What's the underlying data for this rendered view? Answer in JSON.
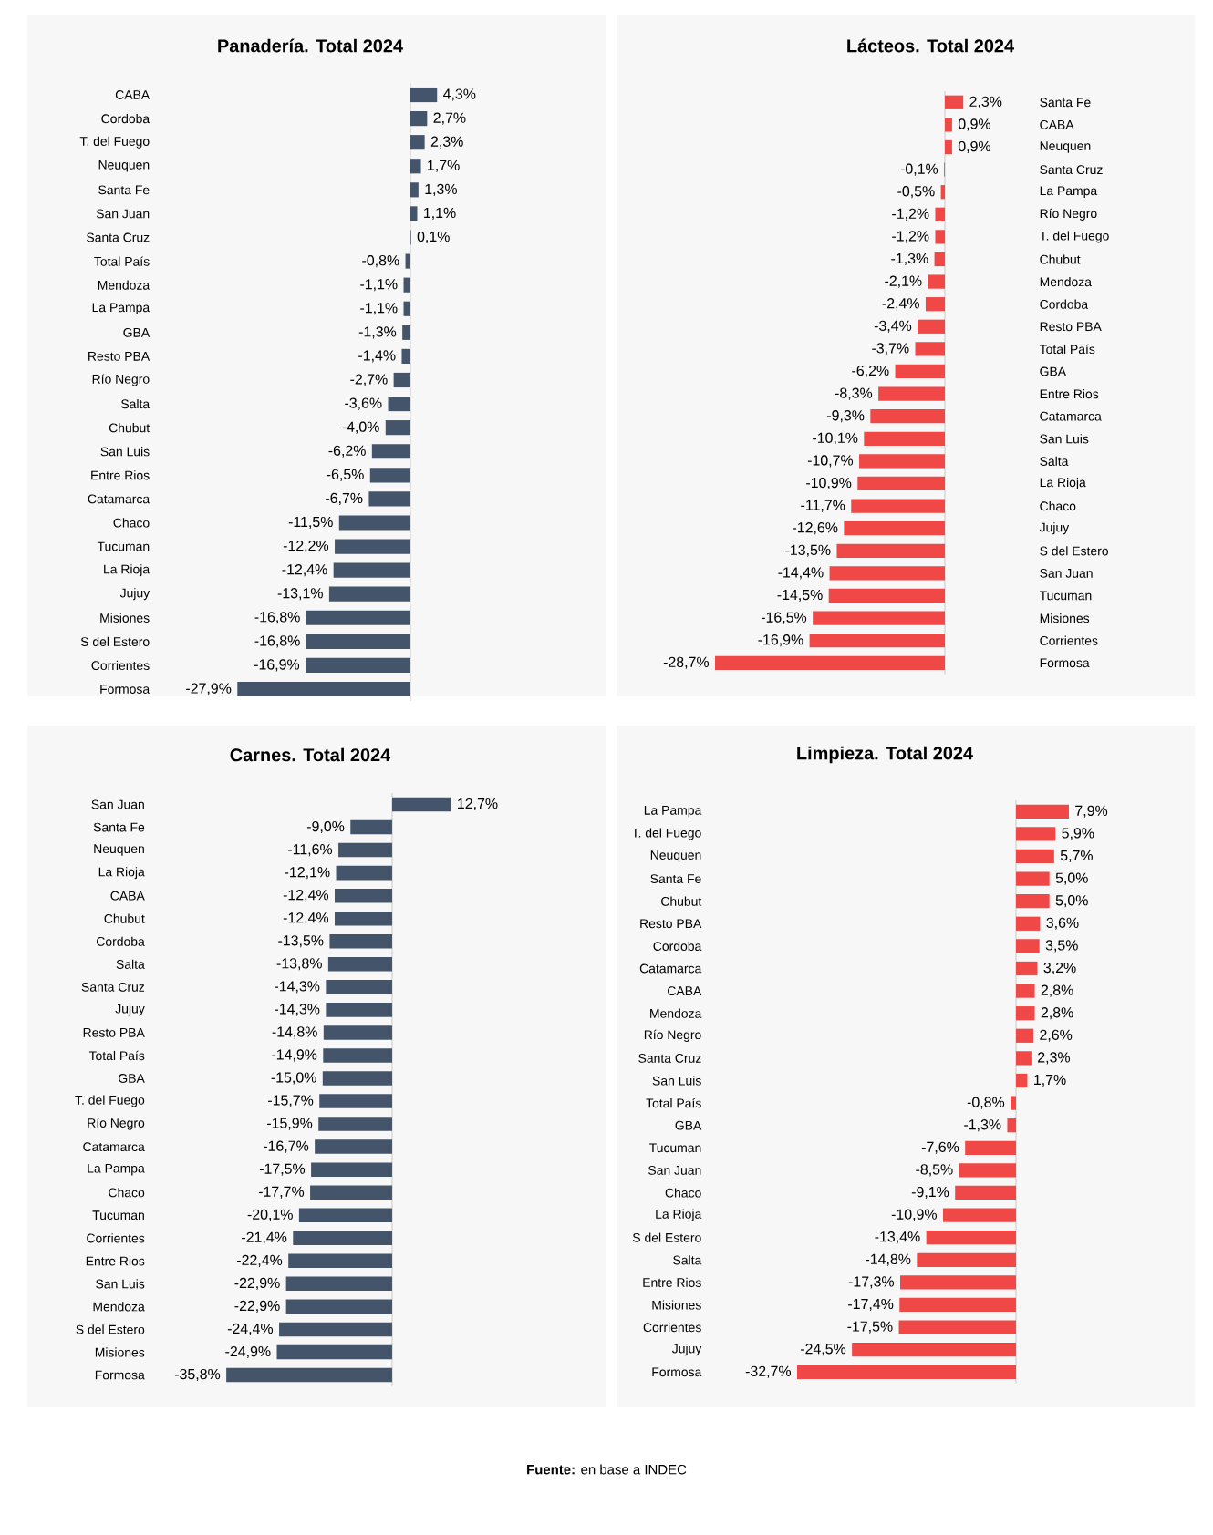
{
  "chart_data": [
    {
      "type": "bar",
      "orientation": "horizontal",
      "title": "Panadería. Total 2024",
      "color": "#44546a",
      "tick_labels": "y",
      "categories": [
        "CABA",
        "Cordoba",
        "T. del Fuego",
        "Neuquen",
        "Santa Fe",
        "San Juan",
        "Santa Cruz",
        "Total País",
        "Mendoza",
        "La Pampa",
        "GBA",
        "Resto PBA",
        "Río Negro",
        "Salta",
        "Chubut",
        "San Luis",
        "Entre Rios",
        "Catamarca",
        "Chaco",
        "Tucuman",
        "La Rioja",
        "Jujuy",
        "Misiones",
        "S del Estero",
        "Corrientes",
        "Formosa"
      ],
      "values": [
        4.3,
        2.7,
        2.3,
        1.7,
        1.3,
        1.1,
        0.1,
        -0.8,
        -1.1,
        -1.1,
        -1.3,
        -1.4,
        -2.7,
        -3.6,
        -4.0,
        -6.2,
        -6.5,
        -6.7,
        -11.5,
        -12.2,
        -12.4,
        -13.1,
        -16.8,
        -16.8,
        -16.9,
        -27.9
      ],
      "value_labels": [
        "4,3%",
        "2,7%",
        "2,3%",
        "1,7%",
        "1,3%",
        "1,1%",
        "0,1%",
        "-0,8%",
        "-1,1%",
        "-1,1%",
        "-1,3%",
        "-1,4%",
        "-2,7%",
        "-3,6%",
        "-4,0%",
        "-6,2%",
        "-6,5%",
        "-6,7%",
        "-11,5%",
        "-12,2%",
        "-12,4%",
        "-13,1%",
        "-16,8%",
        "-16,8%",
        "-16,9%",
        "-27,9%"
      ]
    },
    {
      "type": "bar",
      "orientation": "horizontal",
      "title": "Lácteos. Total 2024",
      "color": "#f04747",
      "tick_labels": "y",
      "categories": [
        "Santa Fe",
        "CABA",
        "Neuquen",
        "Santa Cruz",
        "La Pampa",
        "Río Negro",
        "T. del Fuego",
        "Chubut",
        "Mendoza",
        "Cordoba",
        "Resto PBA",
        "Total País",
        "GBA",
        "Entre Rios",
        "Catamarca",
        "San Luis",
        "Salta",
        "La Rioja",
        "Chaco",
        "Jujuy",
        "S del Estero",
        "San Juan",
        "Tucuman",
        "Misiones",
        "Corrientes",
        "Formosa"
      ],
      "values": [
        2.3,
        0.9,
        0.9,
        -0.1,
        -0.5,
        -1.2,
        -1.2,
        -1.3,
        -2.1,
        -2.4,
        -3.4,
        -3.7,
        -6.2,
        -8.3,
        -9.3,
        -10.1,
        -10.7,
        -10.9,
        -11.7,
        -12.6,
        -13.5,
        -14.4,
        -14.5,
        -16.5,
        -16.9,
        -28.7
      ],
      "value_labels": [
        "2,3%",
        "0,9%",
        "0,9%",
        "-0,1%",
        "-0,5%",
        "-1,2%",
        "-1,2%",
        "-1,3%",
        "-2,1%",
        "-2,4%",
        "-3,4%",
        "-3,7%",
        "-6,2%",
        "-8,3%",
        "-9,3%",
        "-10,1%",
        "-10,7%",
        "-10,9%",
        "-11,7%",
        "-12,6%",
        "-13,5%",
        "-14,4%",
        "-14,5%",
        "-16,5%",
        "-16,9%",
        "-28,7%"
      ]
    },
    {
      "type": "bar",
      "orientation": "horizontal",
      "title": "Carnes. Total 2024",
      "color": "#44546a",
      "tick_labels": "y",
      "categories": [
        "San Juan",
        "Santa Fe",
        "Neuquen",
        "La Rioja",
        "CABA",
        "Chubut",
        "Cordoba",
        "Salta",
        "Santa Cruz",
        "Jujuy",
        "Resto PBA",
        "Total País",
        "GBA",
        "T. del Fuego",
        "Río Negro",
        "Catamarca",
        "La Pampa",
        "Chaco",
        "Tucuman",
        "Corrientes",
        "Entre Rios",
        "San Luis",
        "Mendoza",
        "S del Estero",
        "Misiones",
        "Formosa"
      ],
      "values": [
        12.7,
        -9.0,
        -11.6,
        -12.1,
        -12.4,
        -12.4,
        -13.5,
        -13.8,
        -14.3,
        -14.3,
        -14.8,
        -14.9,
        -15.0,
        -15.7,
        -15.9,
        -16.7,
        -17.5,
        -17.7,
        -20.1,
        -21.4,
        -22.4,
        -22.9,
        -22.9,
        -24.4,
        -24.9,
        -35.8
      ],
      "value_labels": [
        "12,7%",
        "-9,0%",
        "-11,6%",
        "-12,1%",
        "-12,4%",
        "-12,4%",
        "-13,5%",
        "-13,8%",
        "-14,3%",
        "-14,3%",
        "-14,8%",
        "-14,9%",
        "-15,0%",
        "-15,7%",
        "-15,9%",
        "-16,7%",
        "-17,5%",
        "-17,7%",
        "-20,1%",
        "-21,4%",
        "-22,4%",
        "-22,9%",
        "-22,9%",
        "-24,4%",
        "-24,9%",
        "-35,8%"
      ]
    },
    {
      "type": "bar",
      "orientation": "horizontal",
      "title": "Limpieza. Total 2024",
      "color": "#f04747",
      "tick_labels": "y",
      "categories": [
        "La Pampa",
        "T. del Fuego",
        "Neuquen",
        "Santa Fe",
        "Chubut",
        "Resto PBA",
        "Cordoba",
        "Catamarca",
        "CABA",
        "Mendoza",
        "Río Negro",
        "Santa Cruz",
        "San Luis",
        "Total País",
        "GBA",
        "Tucuman",
        "San Juan",
        "Chaco",
        "La Rioja",
        "S del Estero",
        "Salta",
        "Entre Rios",
        "Misiones",
        "Corrientes",
        "Jujuy",
        "Formosa"
      ],
      "values": [
        7.9,
        5.9,
        5.7,
        5.0,
        5.0,
        3.6,
        3.5,
        3.2,
        2.8,
        2.8,
        2.6,
        2.3,
        1.7,
        -0.8,
        -1.3,
        -7.6,
        -8.5,
        -9.1,
        -10.9,
        -13.4,
        -14.8,
        -17.3,
        -17.4,
        -17.5,
        -24.5,
        -32.7
      ],
      "value_labels": [
        "7,9%",
        "5,9%",
        "5,7%",
        "5,0%",
        "5,0%",
        "3,6%",
        "3,5%",
        "3,2%",
        "2,8%",
        "2,8%",
        "2,6%",
        "2,3%",
        "1,7%",
        "-0,8%",
        "-1,3%",
        "-7,6%",
        "-8,5%",
        "-9,1%",
        "-10,9%",
        "-13,4%",
        "-14,8%",
        "-17,3%",
        "-17,4%",
        "-17,5%",
        "-24,5%",
        "-32,7%"
      ],
      "annotations": [
        "**Fuente:** en base a INDEC"
      ]
    }
  ]
}
